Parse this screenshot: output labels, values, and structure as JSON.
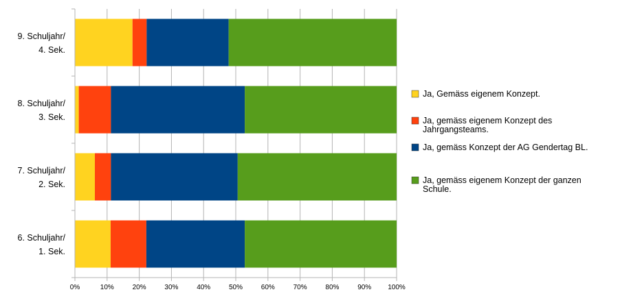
{
  "chart_data": {
    "type": "bar",
    "orientation": "horizontal",
    "stacked": "percent",
    "categories": [
      [
        "9. Schuljahr/",
        "4. Sek."
      ],
      [
        "8. Schuljahr/",
        "3. Sek."
      ],
      [
        "7. Schuljahr/",
        "2. Sek."
      ],
      [
        "6. Schuljahr/",
        "1. Sek."
      ]
    ],
    "series": [
      {
        "name": [
          "Ja, Gemäss eigenem Konzept."
        ],
        "color": "#ffd320",
        "values": [
          17.9,
          1.2,
          6.2,
          11.1
        ]
      },
      {
        "name": [
          "Ja, gemäss eigenem Konzept des",
          "Jahrgangsteams."
        ],
        "color": "#ff420e",
        "values": [
          4.4,
          10.0,
          5.0,
          11.1
        ]
      },
      {
        "name": [
          "Ja, gemäss Konzept der AG Gendertag BL."
        ],
        "color": "#004586",
        "values": [
          25.5,
          41.6,
          39.4,
          30.6
        ]
      },
      {
        "name": [
          "Ja, gemäss eigenem Konzept der ganzen",
          "Schule."
        ],
        "color": "#579d1c",
        "values": [
          52.2,
          47.2,
          49.4,
          47.2
        ]
      }
    ],
    "xticks": [
      "0%",
      "10%",
      "20%",
      "30%",
      "40%",
      "50%",
      "60%",
      "70%",
      "80%",
      "90%",
      "100%"
    ],
    "xlim": [
      0,
      100
    ],
    "grid": true,
    "legend": "right"
  }
}
